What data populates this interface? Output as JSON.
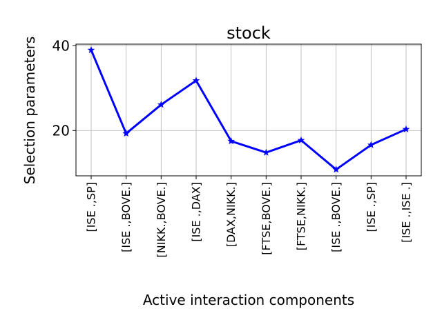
{
  "chart_data": {
    "type": "line",
    "title": "stock",
    "xlabel": "Active interaction components",
    "ylabel": "Selection parameters",
    "categories": [
      "[ISE .,SP]",
      "[ISE .,BOVE.]",
      "[NIKK.,BOVE.]",
      "[ISE .,DAX]",
      "[DAX,NIKK.]",
      "[FTSE,BOVE.]",
      "[FTSE,NIKK.]",
      "[ISE .,BOVE.]",
      "[ISE .,SP]",
      "[ISE .,ISE .]"
    ],
    "series": [
      {
        "values": [
          39.0,
          19.3,
          26.1,
          31.8,
          17.5,
          14.8,
          17.7,
          10.8,
          16.6,
          20.3
        ]
      }
    ],
    "yticks": [
      20,
      40
    ],
    "ylim": [
      9.3,
      40.4
    ],
    "grid": true,
    "line_color": "#0000ff",
    "marker": "star"
  }
}
